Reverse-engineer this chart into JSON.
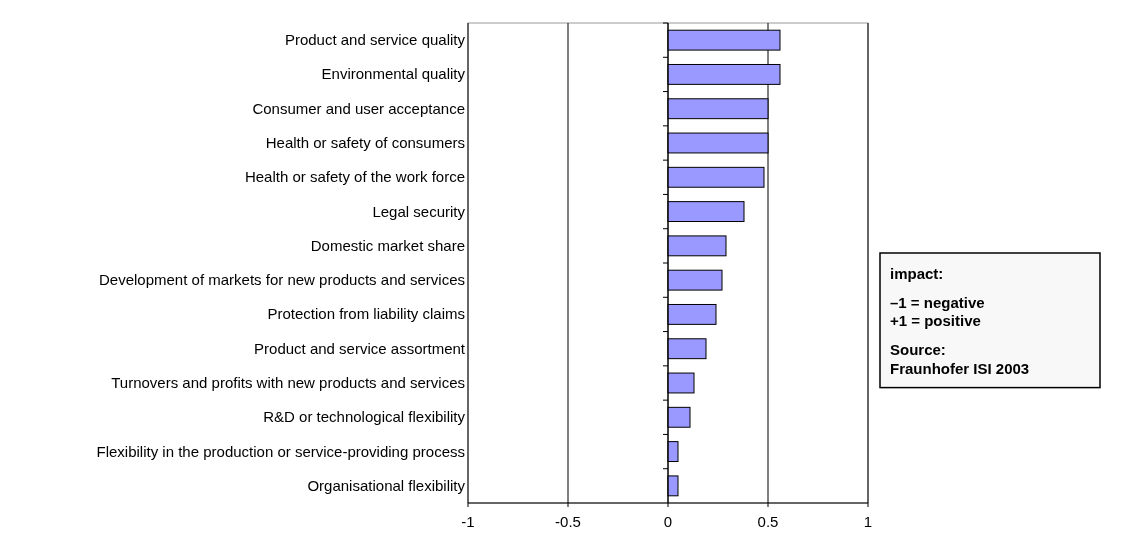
{
  "chart_data": {
    "type": "bar",
    "orientation": "horizontal",
    "categories": [
      "Product and service quality",
      "Environmental quality",
      "Consumer and user acceptance",
      "Health or safety of consumers",
      "Health or safety of the work force",
      "Legal security",
      "Domestic market share",
      "Development of markets for new products and services",
      "Protection from liability claims",
      "Product and service assortment",
      "Turnovers and profits with new products and services",
      "R&D or technological flexibility",
      "Flexibility in the production or service-providing process",
      "Organisational flexibility"
    ],
    "values": [
      0.56,
      0.56,
      0.5,
      0.5,
      0.48,
      0.38,
      0.29,
      0.27,
      0.24,
      0.19,
      0.13,
      0.11,
      0.05,
      0.05
    ],
    "color": "#9999ff",
    "xlim": [
      -1,
      1
    ],
    "xticks": [
      -1,
      -0.5,
      0,
      0.5,
      1
    ],
    "grid": "x",
    "annotations": [
      "impact:",
      "–1 = negative",
      "+1 = positive",
      "Source:",
      "Fraunhofer ISI 2003"
    ]
  }
}
